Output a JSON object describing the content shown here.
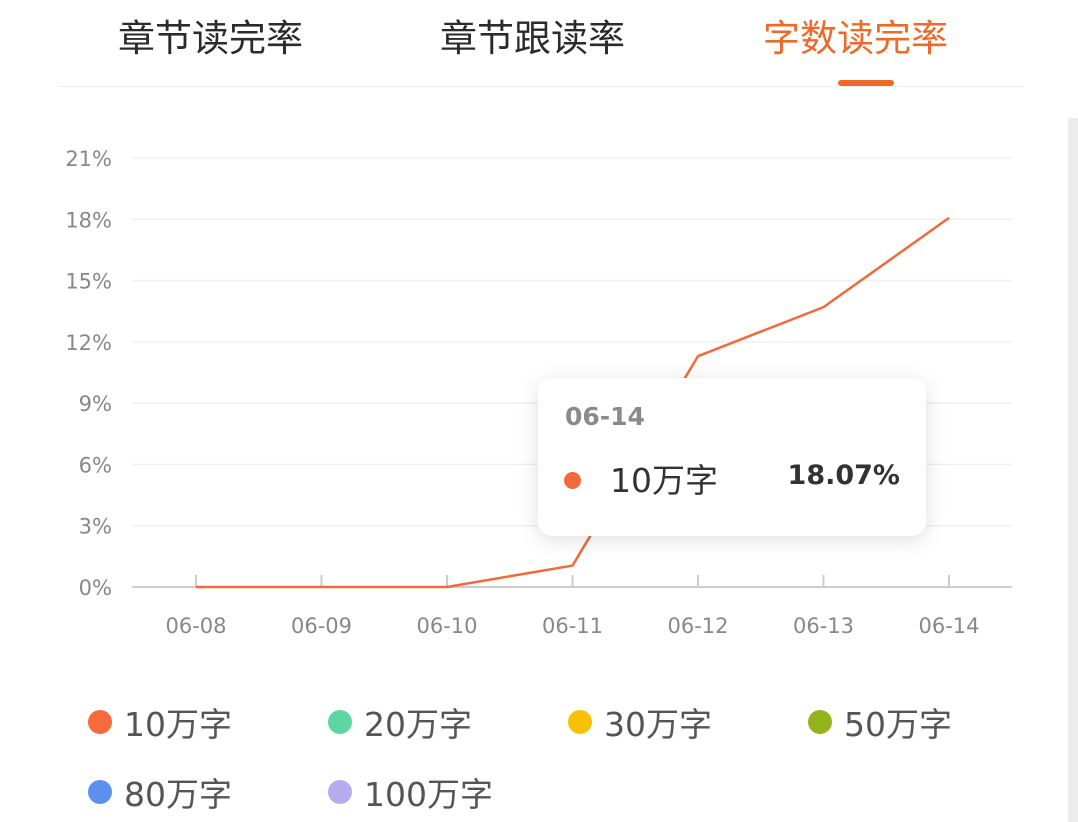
{
  "tabs": [
    {
      "label": "章节读完率",
      "active": false
    },
    {
      "label": "章节跟读率",
      "active": false
    },
    {
      "label": "字数读完率",
      "active": true
    }
  ],
  "colors": {
    "accent": "#ee6a2a",
    "text": "#2b2b2b",
    "axis_text": "#888888",
    "grid": "#f0f0f0"
  },
  "chart_data": {
    "type": "line",
    "x": [
      "06-08",
      "06-09",
      "06-10",
      "06-11",
      "06-12",
      "06-13",
      "06-14"
    ],
    "yticks": [
      "0%",
      "3%",
      "6%",
      "9%",
      "12%",
      "15%",
      "18%",
      "21%"
    ],
    "ylim": [
      0,
      21
    ],
    "grid": true,
    "series": [
      {
        "name": "10万字",
        "color": "#f06b3b",
        "values": [
          0,
          0,
          0,
          1.05,
          11.3,
          13.7,
          18.07
        ]
      }
    ]
  },
  "tooltip": {
    "date": "06-14",
    "series_name": "10万字",
    "value": "18.07%",
    "color": "#f06b3b"
  },
  "legend": [
    {
      "label": "10万字",
      "color": "#f56b3b"
    },
    {
      "label": "20万字",
      "color": "#5ed6a4"
    },
    {
      "label": "30万字",
      "color": "#f7c100"
    },
    {
      "label": "50万字",
      "color": "#94b21c"
    },
    {
      "label": "80万字",
      "color": "#5b8ff0"
    },
    {
      "label": "100万字",
      "color": "#b7acf0"
    }
  ]
}
